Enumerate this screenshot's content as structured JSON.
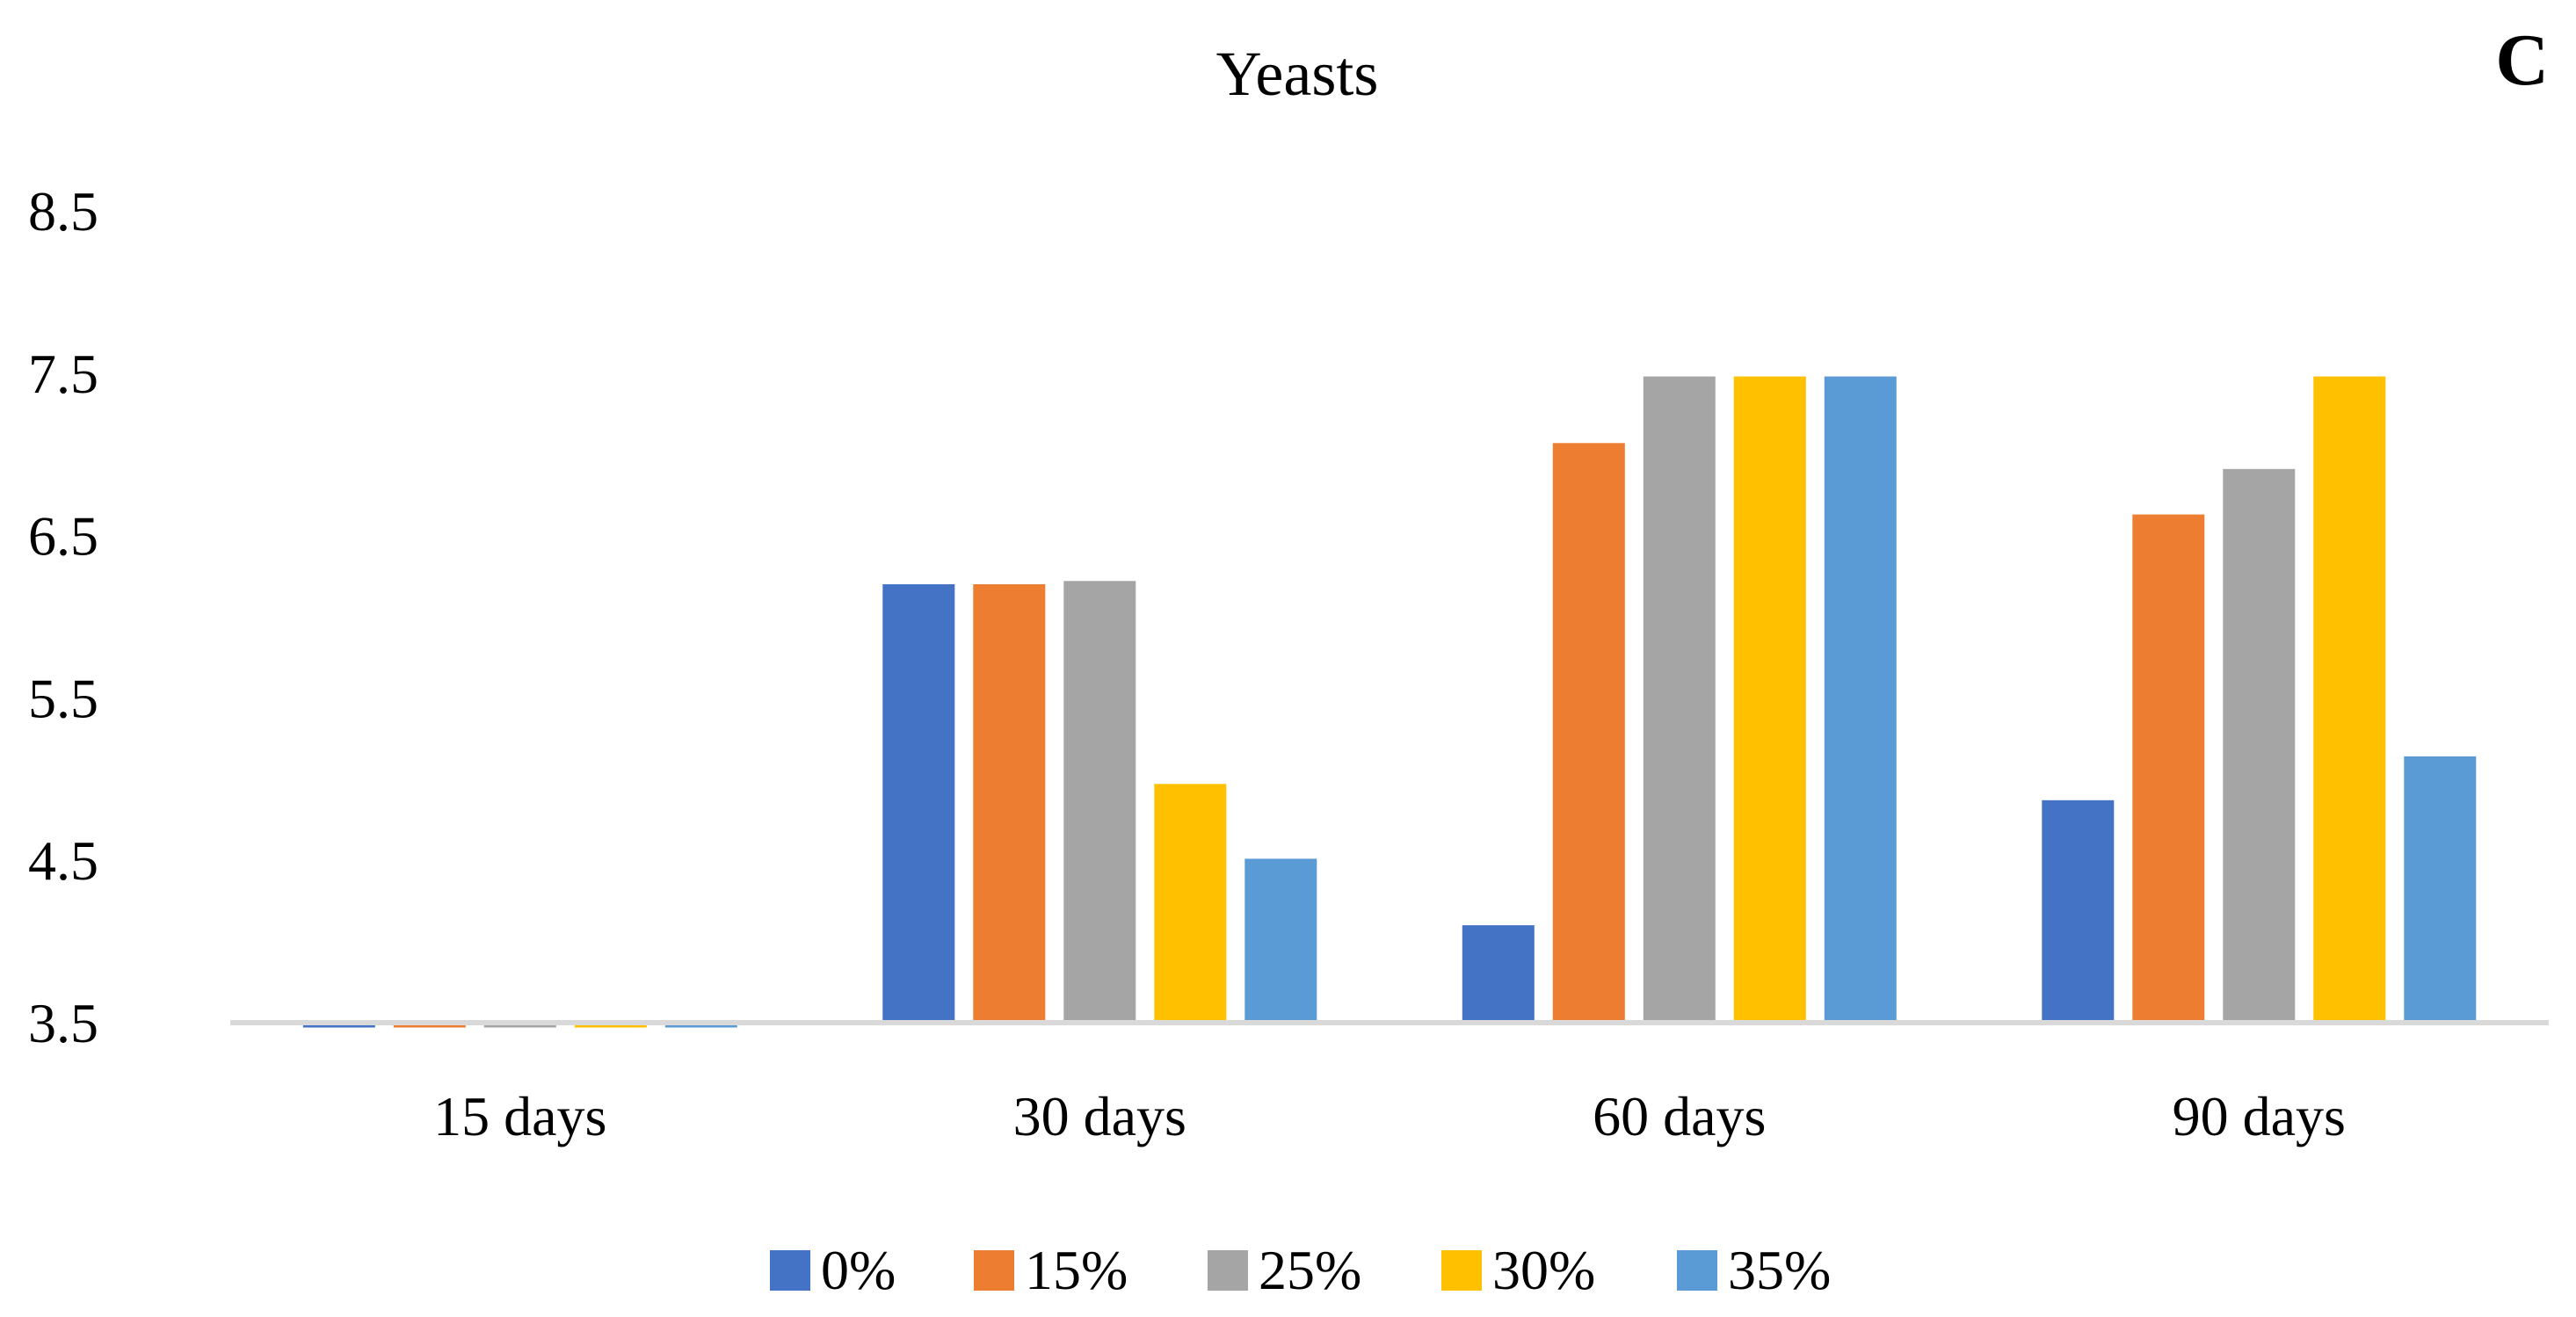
{
  "panel_label": "C",
  "chart_data": {
    "type": "bar",
    "title": "Yeasts",
    "xlabel": "",
    "ylabel": "",
    "ylim": [
      3.5,
      8.5
    ],
    "yticks": [
      "8.5",
      "7.5",
      "6.5",
      "5.5",
      "4.5",
      "3.5"
    ],
    "categories": [
      "15 days",
      "30 days",
      "60 days",
      "90 days"
    ],
    "series": [
      {
        "name": "0%",
        "color": "#4472C4",
        "values": [
          3.47,
          6.2,
          4.1,
          4.87
        ]
      },
      {
        "name": "15%",
        "color": "#ED7D31",
        "values": [
          3.47,
          6.2,
          7.07,
          6.63
        ]
      },
      {
        "name": "25%",
        "color": "#A5A5A5",
        "values": [
          3.47,
          6.22,
          7.48,
          6.91
        ]
      },
      {
        "name": "30%",
        "color": "#FFC000",
        "values": [
          3.47,
          4.97,
          7.48,
          7.48
        ]
      },
      {
        "name": "35%",
        "color": "#5B9BD5",
        "values": [
          3.47,
          4.51,
          7.48,
          5.14
        ]
      }
    ],
    "grid": false,
    "legend_position": "bottom"
  }
}
